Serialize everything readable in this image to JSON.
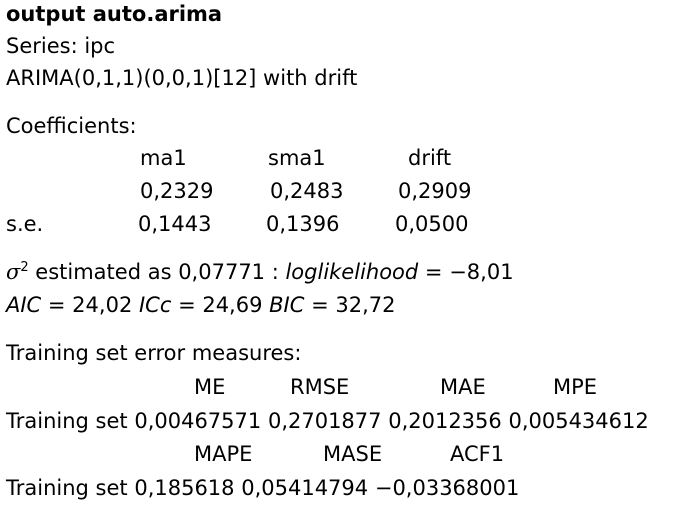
{
  "title": "output auto.arima",
  "series_line": "Series: ipc",
  "model_line": "ARIMA(0,1,1)(0,0,1)[12] with drift",
  "coefficients": {
    "heading": "Coefficients:",
    "columns": [
      "ma1",
      "sma1",
      "drift"
    ],
    "estimates": [
      "0,2329",
      "0,2483",
      "0,2909"
    ],
    "se_label": "s.e.",
    "se_values": [
      "0,1443",
      "0,1396",
      "0,0500"
    ]
  },
  "sigma": {
    "sigma_symbol": "σ",
    "sigma_power": "2",
    "estimated_text": " estimated as 0,07771 : ",
    "loglik_label": "loglikelihood",
    "loglik_value": " = −8,01"
  },
  "info_criteria": {
    "aic_label": "AIC",
    "aic_value": " = 24,02 ",
    "aicc_label": "ICc",
    "aicc_value": " = 24,69 ",
    "bic_label": "BIC",
    "bic_value": " = 32,72"
  },
  "training": {
    "heading": "Training set error measures:",
    "header1": [
      "ME",
      "RMSE",
      "MAE",
      "MPE"
    ],
    "row1_label": "Training set",
    "row1_values": [
      "0,00467571",
      "0,2701877",
      "0,2012356",
      "0,005434612"
    ],
    "header2": [
      "MAPE",
      "MASE",
      "ACF1"
    ],
    "row2_label": "Training set",
    "row2_values": [
      "0,185618",
      "0,05414794",
      "−0,03368001"
    ]
  }
}
